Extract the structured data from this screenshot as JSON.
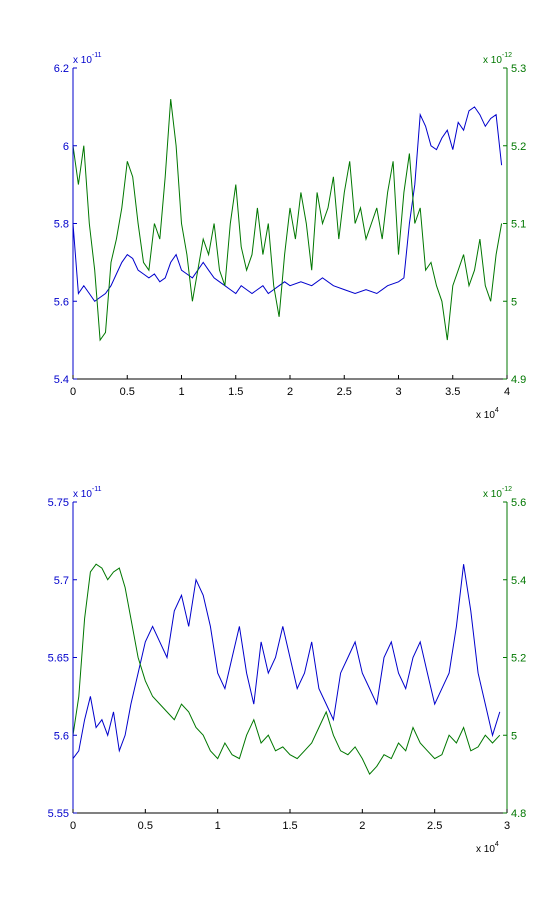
{
  "colors": {
    "series1": "#0000cc",
    "series2": "#007700",
    "axis": "#000000"
  },
  "multipliers": {
    "x_base": "x 10",
    "x_exp": "4",
    "top_left_base": "x 10",
    "top_left_exp": "-11",
    "top_right_base": "x 10",
    "top_right_exp": "-12",
    "bottom_left_base": "x 10",
    "bottom_left_exp": "-11",
    "bottom_right_base": "x 10",
    "bottom_right_exp": "-12"
  },
  "chart_data": [
    {
      "type": "line",
      "xlim": [
        0,
        4
      ],
      "ylim_left": [
        5.4,
        6.2
      ],
      "ylim_right": [
        4.9,
        5.3
      ],
      "x_ticks": [
        "0",
        "0.5",
        "1",
        "1.5",
        "2",
        "2.5",
        "3",
        "3.5",
        "4"
      ],
      "y_left_ticks": [
        "5.4",
        "5.6",
        "5.8",
        "6",
        "6.2"
      ],
      "y_right_ticks": [
        "4.9",
        "5",
        "5.1",
        "5.2",
        "5.3"
      ],
      "series": [
        {
          "axis": "left",
          "x": [
            0,
            0.05,
            0.1,
            0.15,
            0.2,
            0.25,
            0.3,
            0.35,
            0.4,
            0.45,
            0.5,
            0.55,
            0.6,
            0.65,
            0.7,
            0.75,
            0.8,
            0.85,
            0.9,
            0.95,
            1.0,
            1.05,
            1.1,
            1.15,
            1.2,
            1.25,
            1.3,
            1.35,
            1.4,
            1.45,
            1.5,
            1.55,
            1.6,
            1.65,
            1.7,
            1.75,
            1.8,
            1.85,
            1.9,
            1.95,
            2.0,
            2.1,
            2.2,
            2.3,
            2.4,
            2.5,
            2.6,
            2.7,
            2.8,
            2.9,
            3.0,
            3.05,
            3.1,
            3.15,
            3.2,
            3.25,
            3.3,
            3.35,
            3.4,
            3.45,
            3.5,
            3.55,
            3.6,
            3.65,
            3.7,
            3.75,
            3.8,
            3.85,
            3.9,
            3.95
          ],
          "y": [
            5.8,
            5.62,
            5.64,
            5.62,
            5.6,
            5.61,
            5.62,
            5.64,
            5.67,
            5.7,
            5.72,
            5.71,
            5.68,
            5.67,
            5.66,
            5.67,
            5.65,
            5.66,
            5.7,
            5.72,
            5.68,
            5.67,
            5.66,
            5.68,
            5.7,
            5.68,
            5.66,
            5.65,
            5.64,
            5.63,
            5.62,
            5.64,
            5.63,
            5.62,
            5.63,
            5.64,
            5.62,
            5.63,
            5.64,
            5.65,
            5.64,
            5.65,
            5.64,
            5.66,
            5.64,
            5.63,
            5.62,
            5.63,
            5.62,
            5.64,
            5.65,
            5.66,
            5.8,
            5.9,
            6.08,
            6.05,
            6.0,
            5.99,
            6.02,
            6.04,
            5.99,
            6.06,
            6.04,
            6.09,
            6.1,
            6.08,
            6.05,
            6.07,
            6.08,
            5.95
          ]
        },
        {
          "axis": "right",
          "x": [
            0,
            0.05,
            0.1,
            0.15,
            0.2,
            0.25,
            0.3,
            0.35,
            0.4,
            0.45,
            0.5,
            0.55,
            0.6,
            0.65,
            0.7,
            0.75,
            0.8,
            0.85,
            0.9,
            0.95,
            1.0,
            1.05,
            1.1,
            1.15,
            1.2,
            1.25,
            1.3,
            1.35,
            1.4,
            1.45,
            1.5,
            1.55,
            1.6,
            1.65,
            1.7,
            1.75,
            1.8,
            1.85,
            1.9,
            1.95,
            2.0,
            2.05,
            2.1,
            2.15,
            2.2,
            2.25,
            2.3,
            2.35,
            2.4,
            2.45,
            2.5,
            2.55,
            2.6,
            2.65,
            2.7,
            2.75,
            2.8,
            2.85,
            2.9,
            2.95,
            3.0,
            3.05,
            3.1,
            3.15,
            3.2,
            3.25,
            3.3,
            3.35,
            3.4,
            3.45,
            3.5,
            3.55,
            3.6,
            3.65,
            3.7,
            3.75,
            3.8,
            3.85,
            3.9,
            3.95
          ],
          "y": [
            5.2,
            5.15,
            5.2,
            5.1,
            5.04,
            4.95,
            4.96,
            5.05,
            5.08,
            5.12,
            5.18,
            5.16,
            5.1,
            5.05,
            5.04,
            5.1,
            5.08,
            5.16,
            5.26,
            5.2,
            5.1,
            5.06,
            5.0,
            5.04,
            5.08,
            5.06,
            5.1,
            5.04,
            5.02,
            5.1,
            5.15,
            5.07,
            5.04,
            5.06,
            5.12,
            5.06,
            5.1,
            5.02,
            4.98,
            5.06,
            5.12,
            5.08,
            5.14,
            5.1,
            5.04,
            5.14,
            5.1,
            5.12,
            5.16,
            5.08,
            5.14,
            5.18,
            5.1,
            5.12,
            5.08,
            5.1,
            5.12,
            5.08,
            5.14,
            5.18,
            5.06,
            5.14,
            5.19,
            5.1,
            5.12,
            5.04,
            5.05,
            5.02,
            5.0,
            4.95,
            5.02,
            5.04,
            5.06,
            5.02,
            5.04,
            5.08,
            5.02,
            5.0,
            5.06,
            5.1
          ]
        }
      ]
    },
    {
      "type": "line",
      "xlim": [
        0,
        3
      ],
      "ylim_left": [
        5.55,
        5.75
      ],
      "ylim_right": [
        4.8,
        5.6
      ],
      "x_ticks": [
        "0",
        "0.5",
        "1",
        "1.5",
        "2",
        "2.5",
        "3"
      ],
      "y_left_ticks": [
        "5.55",
        "5.6",
        "5.65",
        "5.7",
        "5.75"
      ],
      "y_right_ticks": [
        "4.8",
        "5",
        "5.2",
        "5.4",
        "5.6"
      ],
      "series": [
        {
          "axis": "left",
          "x": [
            0,
            0.04,
            0.08,
            0.12,
            0.16,
            0.2,
            0.24,
            0.28,
            0.32,
            0.36,
            0.4,
            0.45,
            0.5,
            0.55,
            0.6,
            0.65,
            0.7,
            0.75,
            0.8,
            0.85,
            0.9,
            0.95,
            1.0,
            1.05,
            1.1,
            1.15,
            1.2,
            1.25,
            1.3,
            1.35,
            1.4,
            1.45,
            1.5,
            1.55,
            1.6,
            1.65,
            1.7,
            1.75,
            1.8,
            1.85,
            1.9,
            1.95,
            2.0,
            2.05,
            2.1,
            2.15,
            2.2,
            2.25,
            2.3,
            2.35,
            2.4,
            2.45,
            2.5,
            2.55,
            2.6,
            2.65,
            2.7,
            2.75,
            2.8,
            2.85,
            2.9,
            2.95
          ],
          "y": [
            5.585,
            5.59,
            5.61,
            5.625,
            5.605,
            5.61,
            5.6,
            5.615,
            5.59,
            5.6,
            5.62,
            5.64,
            5.66,
            5.67,
            5.66,
            5.65,
            5.68,
            5.69,
            5.67,
            5.7,
            5.69,
            5.67,
            5.64,
            5.63,
            5.65,
            5.67,
            5.64,
            5.62,
            5.66,
            5.64,
            5.65,
            5.67,
            5.65,
            5.63,
            5.64,
            5.66,
            5.63,
            5.62,
            5.61,
            5.64,
            5.65,
            5.66,
            5.64,
            5.63,
            5.62,
            5.65,
            5.66,
            5.64,
            5.63,
            5.65,
            5.66,
            5.64,
            5.62,
            5.63,
            5.64,
            5.67,
            5.71,
            5.68,
            5.64,
            5.62,
            5.6,
            5.615
          ]
        },
        {
          "axis": "right",
          "x": [
            0,
            0.04,
            0.08,
            0.12,
            0.16,
            0.2,
            0.24,
            0.28,
            0.32,
            0.36,
            0.4,
            0.45,
            0.5,
            0.55,
            0.6,
            0.65,
            0.7,
            0.75,
            0.8,
            0.85,
            0.9,
            0.95,
            1.0,
            1.05,
            1.1,
            1.15,
            1.2,
            1.25,
            1.3,
            1.35,
            1.4,
            1.45,
            1.5,
            1.55,
            1.6,
            1.65,
            1.7,
            1.75,
            1.8,
            1.85,
            1.9,
            1.95,
            2.0,
            2.05,
            2.1,
            2.15,
            2.2,
            2.25,
            2.3,
            2.35,
            2.4,
            2.45,
            2.5,
            2.55,
            2.6,
            2.65,
            2.7,
            2.75,
            2.8,
            2.85,
            2.9,
            2.95
          ],
          "y": [
            5.0,
            5.1,
            5.3,
            5.42,
            5.44,
            5.43,
            5.4,
            5.42,
            5.43,
            5.38,
            5.3,
            5.2,
            5.14,
            5.1,
            5.08,
            5.06,
            5.04,
            5.08,
            5.06,
            5.02,
            5.0,
            4.96,
            4.94,
            4.98,
            4.95,
            4.94,
            5.0,
            5.04,
            4.98,
            5.0,
            4.96,
            4.97,
            4.95,
            4.94,
            4.96,
            4.98,
            5.02,
            5.06,
            5.0,
            4.96,
            4.95,
            4.97,
            4.94,
            4.9,
            4.92,
            4.95,
            4.94,
            4.98,
            4.96,
            5.02,
            4.98,
            4.96,
            4.94,
            4.95,
            5.0,
            4.98,
            5.02,
            4.96,
            4.97,
            5.0,
            4.98,
            5.0
          ]
        }
      ]
    }
  ]
}
